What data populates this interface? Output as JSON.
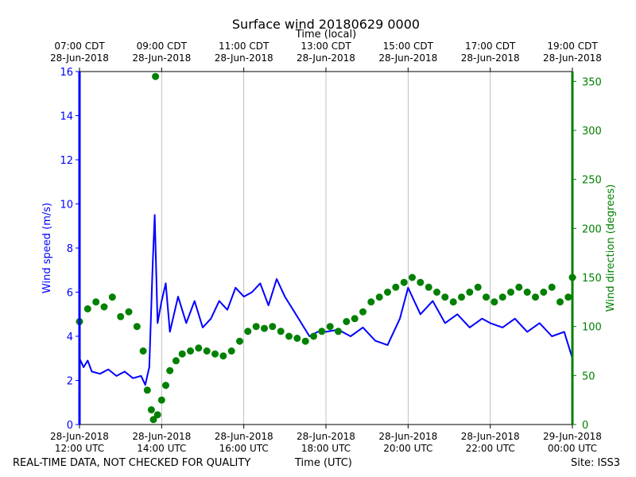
{
  "chart_data": {
    "type": "line",
    "title": "Surface wind 20180629 0000",
    "top_axis_label": "Time (local)",
    "top_ticks": [
      [
        "07:00 CDT",
        "28-Jun-2018"
      ],
      [
        "09:00 CDT",
        "28-Jun-2018"
      ],
      [
        "11:00 CDT",
        "28-Jun-2018"
      ],
      [
        "13:00 CDT",
        "28-Jun-2018"
      ],
      [
        "15:00 CDT",
        "28-Jun-2018"
      ],
      [
        "17:00 CDT",
        "28-Jun-2018"
      ],
      [
        "19:00 CDT",
        "28-Jun-2018"
      ]
    ],
    "bottom_ticks": [
      [
        "28-Jun-2018",
        "12:00 UTC"
      ],
      [
        "28-Jun-2018",
        "14:00 UTC"
      ],
      [
        "28-Jun-2018",
        "16:00 UTC"
      ],
      [
        "28-Jun-2018",
        "18:00 UTC"
      ],
      [
        "28-Jun-2018",
        "20:00 UTC"
      ],
      [
        "28-Jun-2018",
        "22:00 UTC"
      ],
      [
        "29-Jun-2018",
        "00:00 UTC"
      ]
    ],
    "xlabel": "Time (UTC)",
    "x_range_utc_hours": [
      12,
      24
    ],
    "grid_x": true,
    "ylabel_left": "Wind speed (m/s)",
    "ylim_left": [
      0,
      16
    ],
    "yticks_left": [
      0,
      2,
      4,
      6,
      8,
      10,
      12,
      14,
      16
    ],
    "ylabel_right": "Wind direction (degrees)",
    "ylim_right": [
      0,
      360
    ],
    "yticks_right": [
      0,
      50,
      100,
      150,
      200,
      250,
      300,
      350
    ],
    "colors": {
      "speed": "#0000ff",
      "direction": "#008000"
    },
    "series": [
      {
        "name": "Wind speed (m/s)",
        "axis": "left",
        "style": "line",
        "x": [
          12.0,
          12.1,
          12.2,
          12.3,
          12.5,
          12.7,
          12.9,
          13.1,
          13.3,
          13.5,
          13.6,
          13.7,
          13.78,
          13.83,
          13.9,
          14.0,
          14.1,
          14.2,
          14.4,
          14.6,
          14.8,
          15.0,
          15.2,
          15.4,
          15.6,
          15.8,
          16.0,
          16.2,
          16.4,
          16.6,
          16.8,
          17.0,
          17.2,
          17.4,
          17.6,
          17.8,
          18.0,
          18.3,
          18.6,
          18.9,
          19.2,
          19.5,
          19.8,
          20.0,
          20.3,
          20.6,
          20.9,
          21.2,
          21.5,
          21.8,
          22.0,
          22.3,
          22.6,
          22.9,
          23.2,
          23.5,
          23.8,
          24.0
        ],
        "y": [
          3.0,
          2.6,
          2.9,
          2.4,
          2.3,
          2.5,
          2.2,
          2.4,
          2.1,
          2.2,
          1.8,
          2.6,
          7.2,
          9.5,
          4.6,
          5.6,
          6.4,
          4.2,
          5.8,
          4.6,
          5.6,
          4.4,
          4.8,
          5.6,
          5.2,
          6.2,
          5.8,
          6.0,
          6.4,
          5.4,
          6.6,
          5.8,
          5.2,
          4.6,
          4.0,
          4.2,
          4.2,
          4.3,
          4.0,
          4.4,
          3.8,
          3.6,
          4.8,
          6.2,
          5.0,
          5.6,
          4.6,
          5.0,
          4.4,
          4.8,
          4.6,
          4.4,
          4.8,
          4.2,
          4.6,
          4.0,
          4.2,
          3.0
        ]
      },
      {
        "name": "Wind direction (degrees)",
        "axis": "right",
        "style": "markers",
        "x": [
          12.0,
          12.2,
          12.4,
          12.6,
          12.8,
          13.0,
          13.2,
          13.4,
          13.55,
          13.65,
          13.75,
          13.8,
          13.85,
          13.9,
          14.0,
          14.1,
          14.2,
          14.35,
          14.5,
          14.7,
          14.9,
          15.1,
          15.3,
          15.5,
          15.7,
          15.9,
          16.1,
          16.3,
          16.5,
          16.7,
          16.9,
          17.1,
          17.3,
          17.5,
          17.7,
          17.9,
          18.1,
          18.3,
          18.5,
          18.7,
          18.9,
          19.1,
          19.3,
          19.5,
          19.7,
          19.9,
          20.1,
          20.3,
          20.5,
          20.7,
          20.9,
          21.1,
          21.3,
          21.5,
          21.7,
          21.9,
          22.1,
          22.3,
          22.5,
          22.7,
          22.9,
          23.1,
          23.3,
          23.5,
          23.7,
          23.9,
          24.0
        ],
        "y": [
          105,
          118,
          125,
          120,
          130,
          110,
          115,
          100,
          75,
          35,
          15,
          5,
          355,
          10,
          25,
          40,
          55,
          65,
          72,
          75,
          78,
          75,
          72,
          70,
          75,
          85,
          95,
          100,
          98,
          100,
          95,
          90,
          88,
          85,
          90,
          95,
          100,
          95,
          105,
          108,
          115,
          125,
          130,
          135,
          140,
          145,
          150,
          145,
          140,
          135,
          130,
          125,
          130,
          135,
          140,
          130,
          125,
          130,
          135,
          140,
          135,
          130,
          135,
          140,
          125,
          130,
          150
        ]
      }
    ]
  },
  "footer": {
    "left": "REAL-TIME DATA, NOT CHECKED FOR QUALITY",
    "center": "Time (UTC)",
    "right": "Site: ISS3"
  }
}
